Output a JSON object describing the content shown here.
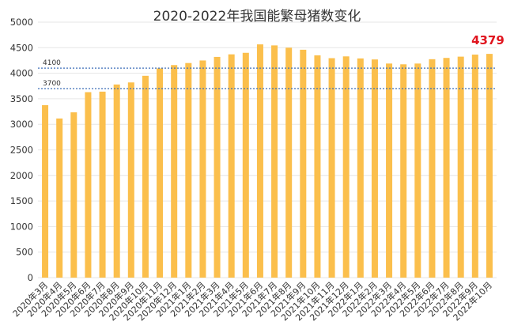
{
  "chart_data": {
    "type": "bar",
    "title": "2020-2022年我国能繁母猪数变化",
    "xlabel": "",
    "ylabel": "",
    "ylim": [
      0,
      5000
    ],
    "yticks": [
      0,
      500,
      1000,
      1500,
      2000,
      2500,
      3000,
      3500,
      4000,
      4500,
      5000
    ],
    "grid": true,
    "categories": [
      "2020年3月",
      "2020年4月",
      "2020年5月",
      "2020年6月",
      "2020年7月",
      "2020年8月",
      "2020年9月",
      "2020年10月",
      "2020年11月",
      "2020年12月",
      "2021年1月",
      "2021年2月",
      "2021年3月",
      "2021年4月",
      "2021年5月",
      "2021年6月",
      "2021年7月",
      "2021年8月",
      "2021年9月",
      "2021年10月",
      "2021年11月",
      "2021年12月",
      "2022年1月",
      "2022年2月",
      "2022年3月",
      "2022年4月",
      "2022年5月",
      "2022年6月",
      "2022年7月",
      "2022年8月",
      "2022年9月",
      "2022年10月"
    ],
    "values": [
      3375,
      3115,
      3235,
      3630,
      3640,
      3780,
      3820,
      3950,
      4095,
      4160,
      4200,
      4250,
      4320,
      4370,
      4400,
      4565,
      4545,
      4500,
      4460,
      4350,
      4295,
      4330,
      4290,
      4270,
      4190,
      4175,
      4190,
      4275,
      4300,
      4325,
      4365,
      4379
    ],
    "reference_lines": [
      {
        "label": "4100",
        "value": 4100
      },
      {
        "label": "3700",
        "value": 3700
      }
    ],
    "highlight": {
      "label": "4379",
      "color": "#e0141e"
    },
    "bar_color": "#fbbf4c",
    "ref_line_color": "#3d6fb8"
  }
}
